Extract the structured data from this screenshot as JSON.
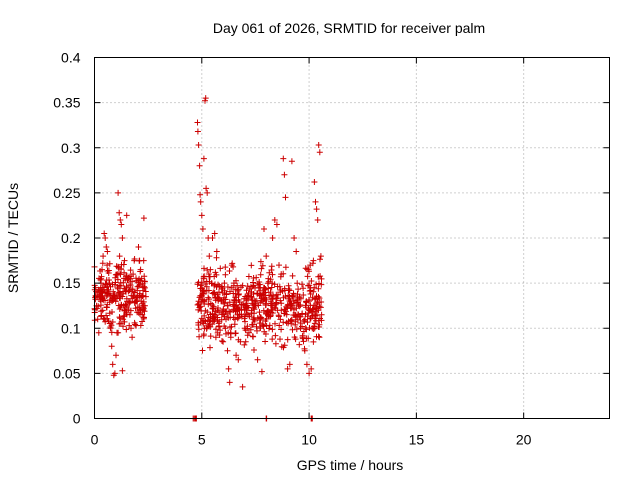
{
  "chart_data": {
    "type": "scatter",
    "title": "Day 061 of 2026, SRMTID for receiver palm",
    "xlabel": "GPS time / hours",
    "ylabel": "SRMTID / TECUs",
    "xlim": [
      0,
      24
    ],
    "ylim": [
      0,
      0.4
    ],
    "x_ticks": [
      0,
      5,
      10,
      15,
      20
    ],
    "x_tick_labels": [
      "0",
      "5",
      "10",
      "15",
      "20"
    ],
    "y_ticks": [
      0,
      0.05,
      0.1,
      0.15,
      0.2,
      0.25,
      0.3,
      0.35,
      0.4
    ],
    "y_tick_labels": [
      "0",
      "0.05",
      "0.1",
      "0.15",
      "0.2",
      "0.25",
      "0.3",
      "0.35",
      "0.4"
    ],
    "grid": true,
    "marker": "+",
    "color": "#cc0000",
    "series": [
      {
        "name": "SRMTID",
        "clusters": [
          {
            "x_range": [
              0.0,
              2.4
            ],
            "y_mean": 0.135,
            "y_spread": 0.04,
            "count": 260
          },
          {
            "x_range": [
              4.8,
              10.6
            ],
            "y_mean": 0.125,
            "y_spread": 0.042,
            "count": 620
          }
        ],
        "points": [
          [
            0.0,
            0.168
          ],
          [
            0.05,
            0.145
          ],
          [
            0.1,
            0.125
          ],
          [
            0.15,
            0.11
          ],
          [
            0.2,
            0.095
          ],
          [
            0.3,
            0.13
          ],
          [
            0.35,
            0.165
          ],
          [
            0.4,
            0.18
          ],
          [
            0.45,
            0.205
          ],
          [
            0.5,
            0.2
          ],
          [
            0.55,
            0.19
          ],
          [
            0.6,
            0.185
          ],
          [
            0.7,
            0.15
          ],
          [
            0.75,
            0.1
          ],
          [
            0.8,
            0.08
          ],
          [
            0.85,
            0.06
          ],
          [
            0.9,
            0.048
          ],
          [
            0.95,
            0.05
          ],
          [
            1.0,
            0.07
          ],
          [
            1.05,
            0.095
          ],
          [
            1.1,
            0.25
          ],
          [
            1.15,
            0.228
          ],
          [
            1.2,
            0.22
          ],
          [
            1.25,
            0.215
          ],
          [
            1.3,
            0.2
          ],
          [
            1.4,
            0.175
          ],
          [
            1.45,
            0.155
          ],
          [
            1.5,
            0.145
          ],
          [
            1.6,
            0.13
          ],
          [
            1.65,
            0.115
          ],
          [
            1.7,
            0.1
          ],
          [
            1.75,
            0.09
          ],
          [
            1.8,
            0.16
          ],
          [
            1.85,
            0.175
          ],
          [
            1.9,
            0.13
          ],
          [
            2.0,
            0.135
          ],
          [
            2.05,
            0.19
          ],
          [
            2.1,
            0.175
          ],
          [
            2.15,
            0.165
          ],
          [
            2.2,
            0.155
          ],
          [
            2.25,
            0.145
          ],
          [
            2.3,
            0.222
          ],
          [
            2.35,
            0.125
          ],
          [
            1.3,
            0.053
          ],
          [
            1.5,
            0.225
          ],
          [
            4.8,
            0.328
          ],
          [
            4.82,
            0.318
          ],
          [
            4.85,
            0.303
          ],
          [
            4.9,
            0.28
          ],
          [
            4.92,
            0.248
          ],
          [
            4.95,
            0.24
          ],
          [
            5.0,
            0.225
          ],
          [
            5.05,
            0.21
          ],
          [
            5.1,
            0.288
          ],
          [
            5.15,
            0.352
          ],
          [
            5.18,
            0.355
          ],
          [
            5.2,
            0.255
          ],
          [
            5.25,
            0.25
          ],
          [
            5.3,
            0.2
          ],
          [
            5.35,
            0.18
          ],
          [
            5.4,
            0.165
          ],
          [
            5.5,
            0.2
          ],
          [
            5.6,
            0.205
          ],
          [
            5.7,
            0.185
          ],
          [
            5.8,
            0.14
          ],
          [
            5.9,
            0.13
          ],
          [
            6.0,
            0.12
          ],
          [
            6.1,
            0.1
          ],
          [
            6.2,
            0.075
          ],
          [
            6.25,
            0.055
          ],
          [
            6.3,
            0.04
          ],
          [
            6.35,
            0.09
          ],
          [
            6.4,
            0.17
          ],
          [
            6.5,
            0.15
          ],
          [
            6.6,
            0.07
          ],
          [
            6.7,
            0.065
          ],
          [
            6.8,
            0.085
          ],
          [
            6.9,
            0.035
          ],
          [
            7.0,
            0.1
          ],
          [
            7.1,
            0.12
          ],
          [
            7.2,
            0.095
          ],
          [
            7.3,
            0.14
          ],
          [
            7.4,
            0.11
          ],
          [
            7.5,
            0.13
          ],
          [
            7.6,
            0.065
          ],
          [
            7.8,
            0.052
          ],
          [
            7.9,
            0.21
          ],
          [
            8.0,
            0.18
          ],
          [
            8.1,
            0.155
          ],
          [
            8.2,
            0.14
          ],
          [
            8.3,
            0.2
          ],
          [
            8.4,
            0.22
          ],
          [
            8.5,
            0.215
          ],
          [
            8.6,
            0.17
          ],
          [
            8.7,
            0.16
          ],
          [
            8.8,
            0.288
          ],
          [
            8.85,
            0.27
          ],
          [
            8.9,
            0.245
          ],
          [
            9.0,
            0.055
          ],
          [
            9.1,
            0.06
          ],
          [
            9.2,
            0.285
          ],
          [
            9.3,
            0.2
          ],
          [
            9.4,
            0.185
          ],
          [
            9.5,
            0.115
          ],
          [
            9.6,
            0.1
          ],
          [
            9.7,
            0.09
          ],
          [
            9.8,
            0.075
          ],
          [
            9.9,
            0.06
          ],
          [
            10.0,
            0.05
          ],
          [
            10.05,
            0.17
          ],
          [
            10.1,
            0.055
          ],
          [
            10.15,
            0.1
          ],
          [
            10.2,
            0.175
          ],
          [
            10.25,
            0.262
          ],
          [
            10.3,
            0.24
          ],
          [
            10.35,
            0.232
          ],
          [
            10.4,
            0.22
          ],
          [
            10.45,
            0.303
          ],
          [
            10.5,
            0.295
          ],
          [
            10.55,
            0.18
          ]
        ],
        "zero_points": [
          4.6,
          4.65,
          4.7,
          4.72,
          4.75,
          8.0,
          8.02,
          10.1,
          10.12,
          10.15
        ]
      }
    ]
  }
}
